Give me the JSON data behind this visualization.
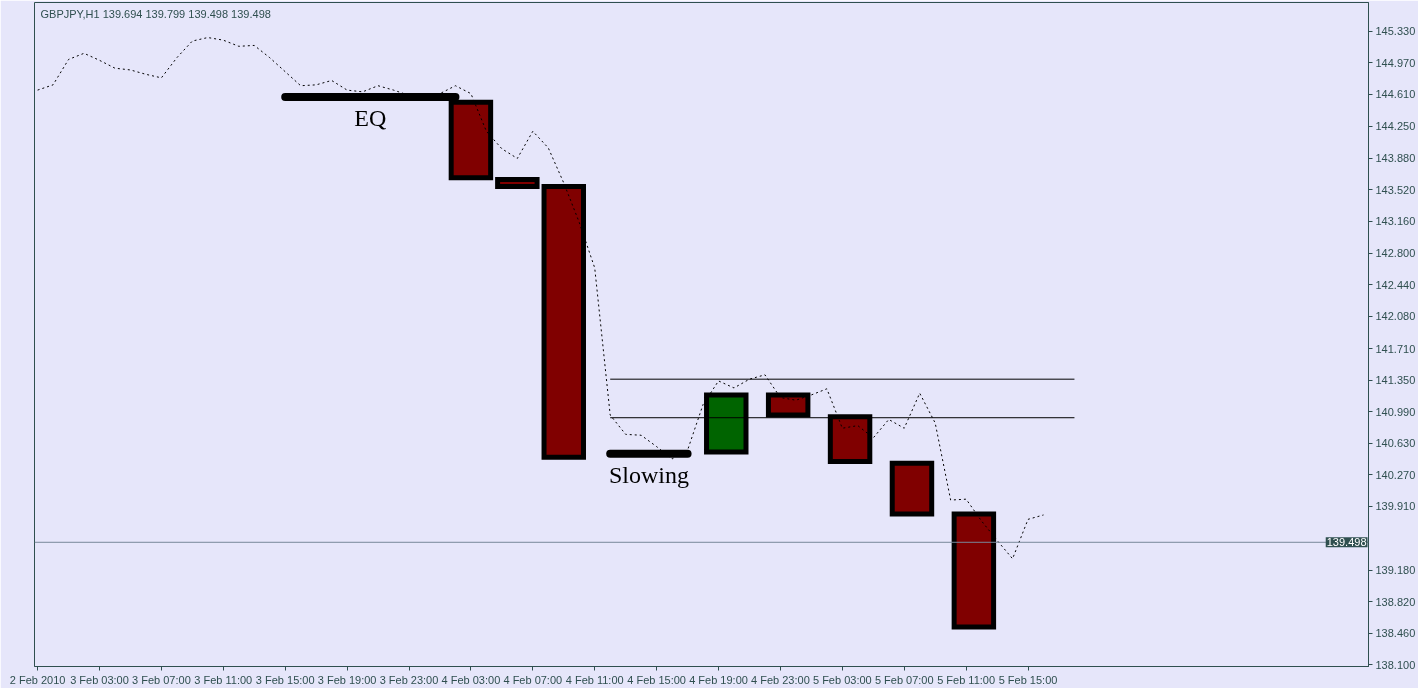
{
  "chart_data": {
    "type": "candlestick",
    "title": "GBPJPY,H1 139.694 139.799 139.498 139.498",
    "x": [
      "2010-02-04T03:00",
      "2010-02-04T06:00",
      "2010-02-04T09:00",
      "2010-02-04T19:30",
      "2010-02-04T23:30",
      "2010-02-05T03:30",
      "2010-02-05T07:30",
      "2010-02-05T11:30"
    ],
    "ohlc": [
      [
        144.52,
        144.52,
        143.66,
        143.66
      ],
      [
        143.64,
        143.64,
        143.56,
        143.56
      ],
      [
        143.56,
        143.56,
        140.47,
        140.47
      ],
      [
        140.53,
        141.18,
        140.53,
        141.18
      ],
      [
        141.18,
        141.18,
        140.95,
        140.95
      ],
      [
        140.93,
        140.93,
        140.42,
        140.42
      ],
      [
        140.4,
        140.4,
        139.82,
        139.82
      ],
      [
        139.82,
        139.82,
        138.53,
        138.53
      ]
    ],
    "colors": [
      "#800000",
      "#800000",
      "#800000",
      "#006400",
      "#800000",
      "#800000",
      "#800000",
      "#800000"
    ],
    "series": [
      {
        "type": "line",
        "color": "#000000",
        "line_style": "dotted",
        "x": [
          "2010-02-02T23:00",
          "2010-02-03T00:00",
          "2010-02-03T01:00",
          "2010-02-03T02:00",
          "2010-02-03T03:00",
          "2010-02-03T04:00",
          "2010-02-03T05:00",
          "2010-02-03T06:00",
          "2010-02-03T07:00",
          "2010-02-03T08:00",
          "2010-02-03T09:00",
          "2010-02-03T10:00",
          "2010-02-03T11:00",
          "2010-02-03T12:00",
          "2010-02-03T13:00",
          "2010-02-03T14:00",
          "2010-02-03T15:00",
          "2010-02-03T16:00",
          "2010-02-03T17:00",
          "2010-02-03T18:00",
          "2010-02-03T19:00",
          "2010-02-03T20:00",
          "2010-02-03T21:00",
          "2010-02-03T22:00",
          "2010-02-03T23:00",
          "2010-02-04T00:00",
          "2010-02-04T01:00",
          "2010-02-04T02:00",
          "2010-02-04T03:00",
          "2010-02-04T04:00",
          "2010-02-04T05:00",
          "2010-02-04T06:00",
          "2010-02-04T07:00",
          "2010-02-04T08:00",
          "2010-02-04T09:00",
          "2010-02-04T10:00",
          "2010-02-04T11:00",
          "2010-02-04T12:00",
          "2010-02-04T13:00",
          "2010-02-04T14:00",
          "2010-02-04T15:00",
          "2010-02-04T16:00",
          "2010-02-04T17:00",
          "2010-02-04T18:00",
          "2010-02-04T19:00",
          "2010-02-04T20:00",
          "2010-02-04T21:00",
          "2010-02-04T22:00",
          "2010-02-04T23:00",
          "2010-02-05T00:00",
          "2010-02-05T01:00",
          "2010-02-05T02:00",
          "2010-02-05T03:00",
          "2010-02-05T04:00",
          "2010-02-05T05:00",
          "2010-02-05T06:00",
          "2010-02-05T07:00",
          "2010-02-05T08:00",
          "2010-02-05T09:00",
          "2010-02-05T10:00",
          "2010-02-05T11:00",
          "2010-02-05T12:00",
          "2010-02-05T13:00",
          "2010-02-05T14:00",
          "2010-02-05T15:00",
          "2010-02-05T16:00"
        ],
        "values": [
          144.66,
          144.72,
          145.01,
          145.08,
          145.0,
          144.91,
          144.89,
          144.84,
          144.8,
          145.03,
          145.22,
          145.26,
          145.23,
          145.16,
          145.17,
          145.03,
          144.87,
          144.71,
          144.72,
          144.77,
          144.66,
          144.64,
          144.71,
          144.66,
          144.6,
          144.61,
          144.62,
          144.71,
          144.62,
          144.19,
          143.99,
          143.88,
          144.19,
          144.0,
          143.6,
          143.15,
          142.63,
          140.95,
          140.73,
          140.72,
          140.59,
          140.45,
          140.55,
          141.07,
          141.34,
          141.26,
          141.36,
          141.41,
          141.15,
          141.12,
          141.18,
          141.25,
          140.8,
          140.83,
          140.69,
          140.9,
          140.8,
          141.2,
          140.86,
          139.98,
          139.99,
          139.74,
          139.52,
          139.31,
          139.76,
          139.81
        ]
      },
      {
        "type": "line",
        "color": "#000000",
        "line_style": "solid",
        "x": [
          "2010-02-04T12:00",
          "2010-02-05T18:00"
        ],
        "values": [
          141.36,
          141.36
        ]
      },
      {
        "type": "line",
        "color": "#000000",
        "line_style": "solid",
        "x": [
          "2010-02-04T12:00",
          "2010-02-05T18:00"
        ],
        "values": [
          140.92,
          140.92
        ]
      },
      {
        "type": "line",
        "name": "EQ",
        "color": "#000000",
        "line_style": "solid",
        "x": [
          "2010-02-03T15:00",
          "2010-02-04T02:00"
        ],
        "values": [
          144.58,
          144.58
        ]
      },
      {
        "type": "line",
        "name": "Slowing",
        "color": "#000000",
        "line_style": "solid",
        "x": [
          "2010-02-04T12:00",
          "2010-02-04T17:00"
        ],
        "values": [
          140.51,
          140.51
        ]
      }
    ],
    "ref_lines": [
      {
        "axis": "y",
        "value": 139.498,
        "label": "139.498",
        "color": "#778899"
      }
    ],
    "xlim": [
      "2010-02-02T22:48",
      "2010-02-06T13:00"
    ],
    "xticks": [
      {
        "value": "2010-02-02T23:00",
        "label": "2 Feb 2010"
      },
      {
        "value": "2010-02-03T03:00",
        "label": "3 Feb 03:00"
      },
      {
        "value": "2010-02-03T07:00",
        "label": "3 Feb 07:00"
      },
      {
        "value": "2010-02-03T11:00",
        "label": "3 Feb 11:00"
      },
      {
        "value": "2010-02-03T15:00",
        "label": "3 Feb 15:00"
      },
      {
        "value": "2010-02-03T19:00",
        "label": "3 Feb 19:00"
      },
      {
        "value": "2010-02-03T23:00",
        "label": "3 Feb 23:00"
      },
      {
        "value": "2010-02-04T03:00",
        "label": "4 Feb 03:00"
      },
      {
        "value": "2010-02-04T07:00",
        "label": "4 Feb 07:00"
      },
      {
        "value": "2010-02-04T11:00",
        "label": "4 Feb 11:00"
      },
      {
        "value": "2010-02-04T15:00",
        "label": "4 Feb 15:00"
      },
      {
        "value": "2010-02-04T19:00",
        "label": "4 Feb 19:00"
      },
      {
        "value": "2010-02-04T23:00",
        "label": "4 Feb 23:00"
      },
      {
        "value": "2010-02-05T03:00",
        "label": "5 Feb 03:00"
      },
      {
        "value": "2010-02-05T07:00",
        "label": "5 Feb 07:00"
      },
      {
        "value": "2010-02-05T11:00",
        "label": "5 Feb 11:00"
      },
      {
        "value": "2010-02-05T15:00",
        "label": "5 Feb 15:00"
      }
    ],
    "ylim": [
      138.08,
      145.66
    ],
    "yticks": [
      {
        "value": 145.33,
        "label": "145.330"
      },
      {
        "value": 144.97,
        "label": "144.970"
      },
      {
        "value": 144.61,
        "label": "144.610"
      },
      {
        "value": 144.25,
        "label": "144.250"
      },
      {
        "value": 143.88,
        "label": "143.880"
      },
      {
        "value": 143.52,
        "label": "143.520"
      },
      {
        "value": 143.16,
        "label": "143.160"
      },
      {
        "value": 142.8,
        "label": "142.800"
      },
      {
        "value": 142.44,
        "label": "142.440"
      },
      {
        "value": 142.08,
        "label": "142.080"
      },
      {
        "value": 141.71,
        "label": "141.710"
      },
      {
        "value": 141.35,
        "label": "141.350"
      },
      {
        "value": 140.99,
        "label": "140.990"
      },
      {
        "value": 140.63,
        "label": "140.630"
      },
      {
        "value": 140.27,
        "label": "140.270"
      },
      {
        "value": 139.91,
        "label": "139.910"
      },
      {
        "value": 139.18,
        "label": "139.180"
      },
      {
        "value": 138.82,
        "label": "138.820"
      },
      {
        "value": 138.46,
        "label": "138.460"
      },
      {
        "value": 138.1,
        "label": "138.100"
      }
    ]
  }
}
